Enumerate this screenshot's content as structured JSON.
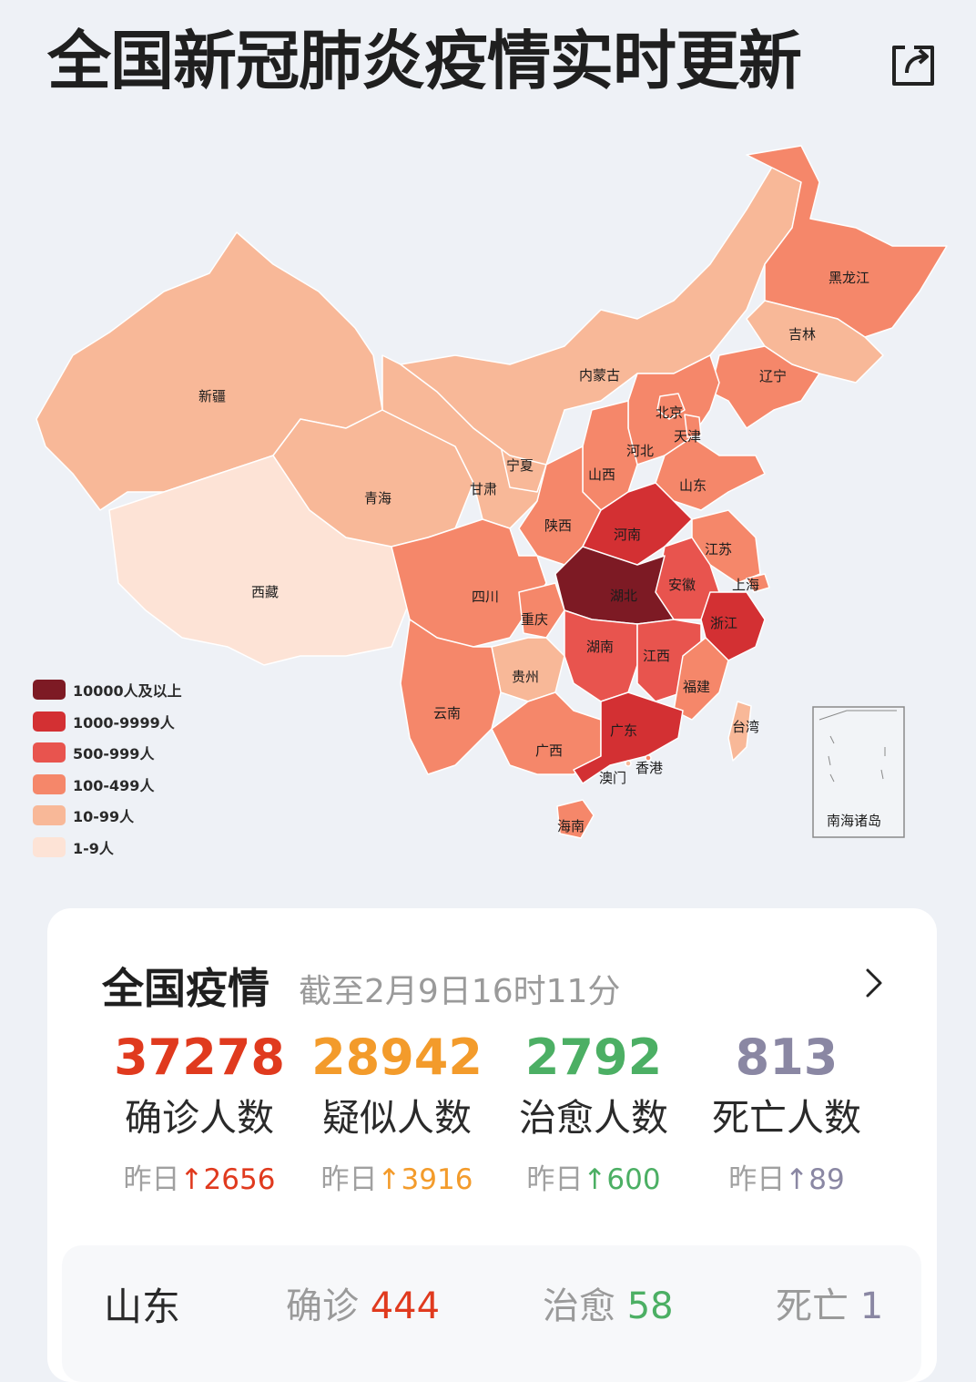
{
  "header": {
    "title": "全国新冠肺炎疫情实时更新",
    "share_icon": "share-icon"
  },
  "map": {
    "provinces": [
      "新疆",
      "西藏",
      "青海",
      "甘肃",
      "宁夏",
      "内蒙古",
      "黑龙江",
      "吉林",
      "辽宁",
      "北京",
      "天津",
      "河北",
      "山西",
      "山东",
      "陕西",
      "河南",
      "江苏",
      "上海",
      "安徽",
      "湖北",
      "浙江",
      "四川",
      "重庆",
      "湖南",
      "江西",
      "贵州",
      "云南",
      "福建",
      "台湾",
      "广东",
      "广西",
      "香港",
      "澳门",
      "海南"
    ],
    "inset_label": "南海诸岛"
  },
  "legend": [
    {
      "label": "10000人及以上",
      "color": "#7d1a24"
    },
    {
      "label": "1000-9999人",
      "color": "#d33033"
    },
    {
      "label": "500-999人",
      "color": "#e8544e"
    },
    {
      "label": "100-499人",
      "color": "#f5876a"
    },
    {
      "label": "10-99人",
      "color": "#f8b898"
    },
    {
      "label": "1-9人",
      "color": "#fde3d6"
    }
  ],
  "card": {
    "title": "全国疫情",
    "timestamp": "截至2月9日16时11分",
    "chevron_icon": "chevron-right-icon",
    "stats": [
      {
        "value": "37278",
        "label": "确诊人数",
        "delta_prefix": "昨日",
        "delta_arrow": "↑",
        "delta_value": "2656",
        "color": "#e03a1e"
      },
      {
        "value": "28942",
        "label": "疑似人数",
        "delta_prefix": "昨日",
        "delta_arrow": "↑",
        "delta_value": "3916",
        "color": "#f39b2b"
      },
      {
        "value": "2792",
        "label": "治愈人数",
        "delta_prefix": "昨日",
        "delta_arrow": "↑",
        "delta_value": "600",
        "color": "#4caf64"
      },
      {
        "value": "813",
        "label": "死亡人数",
        "delta_prefix": "昨日",
        "delta_arrow": "↑",
        "delta_value": "89",
        "color": "#8a87a3"
      }
    ],
    "province_row": {
      "name": "山东",
      "confirmed_label": "确诊",
      "confirmed": "444",
      "cured_label": "治愈",
      "cured": "58",
      "dead_label": "死亡",
      "dead": "1"
    }
  }
}
